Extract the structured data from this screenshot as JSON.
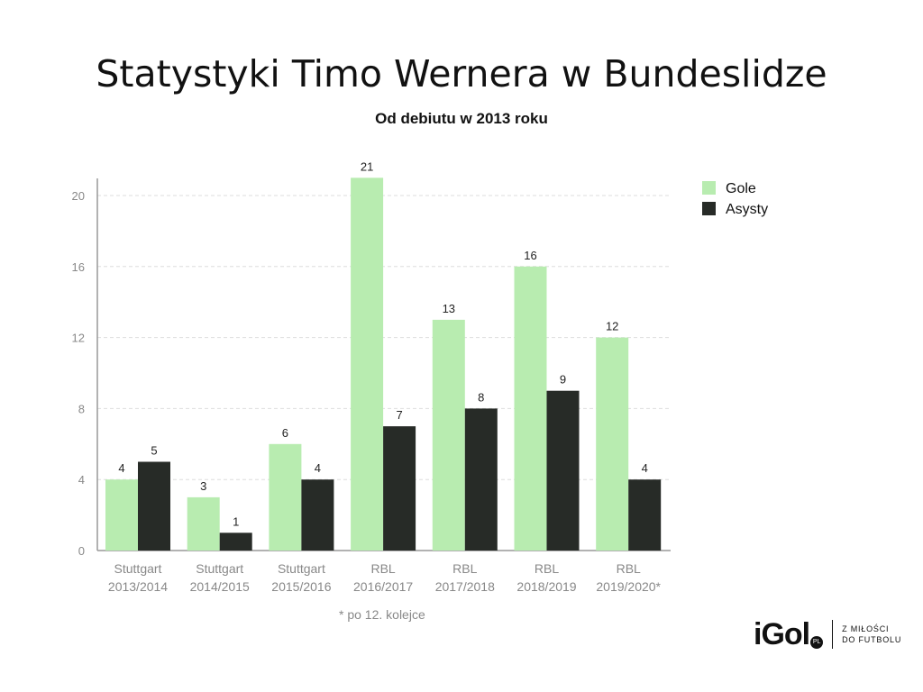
{
  "colors": {
    "gole": "#b8ecb0",
    "asysty": "#272b27",
    "axis": "#999999",
    "grid": "#dddddd",
    "label": "#888888"
  },
  "footnote": "* po 12. kolejce",
  "logo": {
    "word": "iGol",
    "badge": "PL",
    "tagline_line1": "Z MIŁOŚCI",
    "tagline_line2": "DO FUTBOLU"
  },
  "chart_data": {
    "type": "bar",
    "title": "Statystyki Timo Wernera w Bundeslidze",
    "subtitle": "Od debiutu w 2013 roku",
    "categories": [
      [
        "Stuttgart",
        "2013/2014"
      ],
      [
        "Stuttgart",
        "2014/2015"
      ],
      [
        "Stuttgart",
        "2015/2016"
      ],
      [
        "RBL",
        "2016/2017"
      ],
      [
        "RBL",
        "2017/2018"
      ],
      [
        "RBL",
        "2018/2019"
      ],
      [
        "RBL",
        "2019/2020*"
      ]
    ],
    "series": [
      {
        "name": "Gole",
        "values": [
          4,
          3,
          6,
          21,
          13,
          16,
          12
        ]
      },
      {
        "name": "Asysty",
        "values": [
          5,
          1,
          4,
          7,
          8,
          9,
          4
        ]
      }
    ],
    "ylim": [
      0,
      21
    ],
    "yticks": [
      0,
      4,
      8,
      12,
      16,
      20
    ],
    "grid": true,
    "legend": "top-right",
    "data_labels": true
  }
}
